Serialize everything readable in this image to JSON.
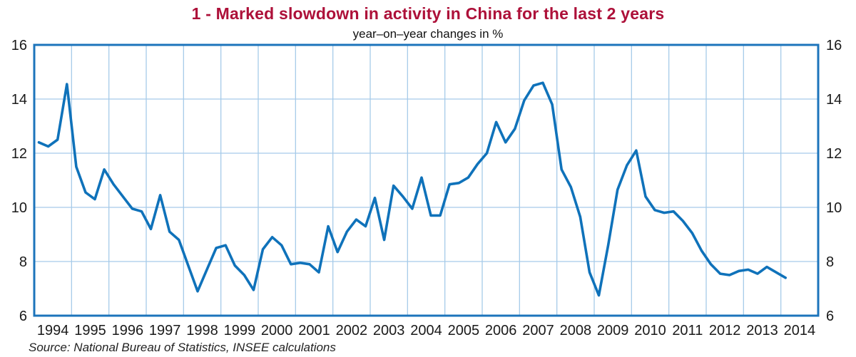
{
  "header": {
    "title": "1 - Marked slowdown in activity in China for the last 2 years",
    "subtitle": "year–on–year changes in %"
  },
  "footer": {
    "source": "Source: National Bureau of Statistics, INSEE calculations"
  },
  "colors": {
    "title": "#ad1039",
    "line": "#0f72ba",
    "grid": "#a6cbe9",
    "border": "#1c74bb",
    "tick_text": "#1a1a1a"
  },
  "chart_data": {
    "type": "line",
    "title": "1 - Marked slowdown in activity in China for the last 2 years",
    "subtitle": "year–on–year changes in %",
    "frequency": "quarterly",
    "start_period": "1994Q1",
    "end_period": "2014Q1",
    "series": [
      {
        "name": "China activity, year-on-year change in %",
        "values": [
          12.4,
          12.25,
          12.5,
          14.55,
          11.5,
          10.55,
          10.3,
          11.4,
          10.85,
          10.4,
          9.95,
          9.85,
          9.2,
          10.45,
          9.1,
          8.8,
          7.85,
          6.9,
          7.7,
          8.5,
          8.6,
          7.85,
          7.5,
          6.95,
          8.45,
          8.9,
          8.6,
          7.9,
          7.95,
          7.9,
          7.6,
          9.3,
          8.35,
          9.1,
          9.55,
          9.3,
          10.35,
          8.8,
          10.8,
          10.4,
          9.95,
          11.1,
          9.7,
          9.7,
          10.85,
          10.9,
          11.1,
          11.6,
          12.0,
          13.15,
          12.4,
          12.9,
          13.95,
          14.5,
          14.6,
          13.8,
          11.4,
          10.75,
          9.65,
          7.6,
          6.75,
          8.6,
          10.65,
          11.55,
          12.1,
          10.4,
          9.9,
          9.8,
          9.85,
          9.5,
          9.05,
          8.4,
          7.9,
          7.55,
          7.5,
          7.65,
          7.7,
          7.55,
          7.8,
          7.6,
          7.4
        ]
      }
    ],
    "x_tick_labels": [
      "1994",
      "1995",
      "1996",
      "1997",
      "1998",
      "1999",
      "2000",
      "2001",
      "2002",
      "2003",
      "2004",
      "2005",
      "2006",
      "2007",
      "2008",
      "2009",
      "2010",
      "2011",
      "2012",
      "2013",
      "2014"
    ],
    "y_ticks": [
      6,
      8,
      10,
      12,
      14,
      16
    ],
    "y_tick_sides": "both",
    "ylim": [
      6,
      16
    ],
    "grid": true,
    "legend": false
  }
}
